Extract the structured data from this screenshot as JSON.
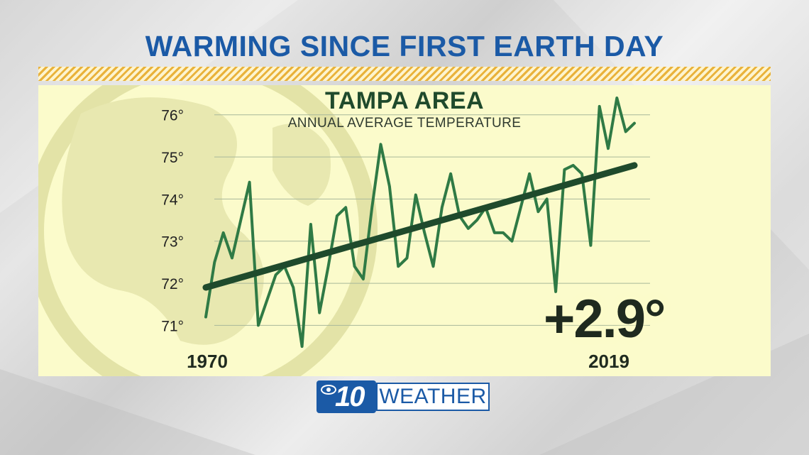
{
  "headline": "WARMING SINCE FIRST EARTH DAY",
  "delta_label": "+2.9°",
  "logo": {
    "number": "10",
    "word": "WEATHER"
  },
  "colors": {
    "headline": "#1b5aa6",
    "stripe": "#e9b23a",
    "panel": "#fbfbcb",
    "series": "#2f7a45",
    "trend": "#1f4a2c",
    "gridline": "#a8b89a"
  },
  "chart_data": {
    "type": "line",
    "title": "TAMPA AREA",
    "subtitle": "ANNUAL AVERAGE TEMPERATURE",
    "ylim": [
      70.4,
      76.4
    ],
    "y_ticks": [
      71,
      72,
      73,
      74,
      75,
      76
    ],
    "y_tick_labels": [
      "71°",
      "72°",
      "73°",
      "74°",
      "75°",
      "76°"
    ],
    "x_range": [
      1970,
      2019
    ],
    "x_tick_labels": [
      "1970",
      "2019"
    ],
    "grid": true,
    "series": [
      {
        "type": "line",
        "x": [
          1970,
          1971,
          1972,
          1973,
          1974,
          1975,
          1976,
          1977,
          1978,
          1979,
          1980,
          1981,
          1982,
          1983,
          1984,
          1985,
          1986,
          1987,
          1988,
          1989,
          1990,
          1991,
          1992,
          1993,
          1994,
          1995,
          1996,
          1997,
          1998,
          1999,
          2000,
          2001,
          2002,
          2003,
          2004,
          2005,
          2006,
          2007,
          2008,
          2009,
          2010,
          2011,
          2012,
          2013,
          2014,
          2015,
          2016,
          2017,
          2018,
          2019
        ],
        "values": [
          71.2,
          72.5,
          73.2,
          72.6,
          73.5,
          74.4,
          71.0,
          71.6,
          72.2,
          72.4,
          71.9,
          70.5,
          73.4,
          71.3,
          72.4,
          73.6,
          73.8,
          72.4,
          72.1,
          73.8,
          75.3,
          74.3,
          72.4,
          72.6,
          74.1,
          73.2,
          72.4,
          73.8,
          74.6,
          73.6,
          73.3,
          73.5,
          73.8,
          73.2,
          73.2,
          73.0,
          73.8,
          74.6,
          73.7,
          74.0,
          71.8,
          74.7,
          74.8,
          74.6,
          72.9,
          76.2,
          75.2,
          76.4,
          75.6,
          75.8
        ]
      },
      {
        "type": "trend",
        "x": [
          1970,
          2019
        ],
        "values": [
          71.9,
          74.8
        ]
      }
    ]
  }
}
